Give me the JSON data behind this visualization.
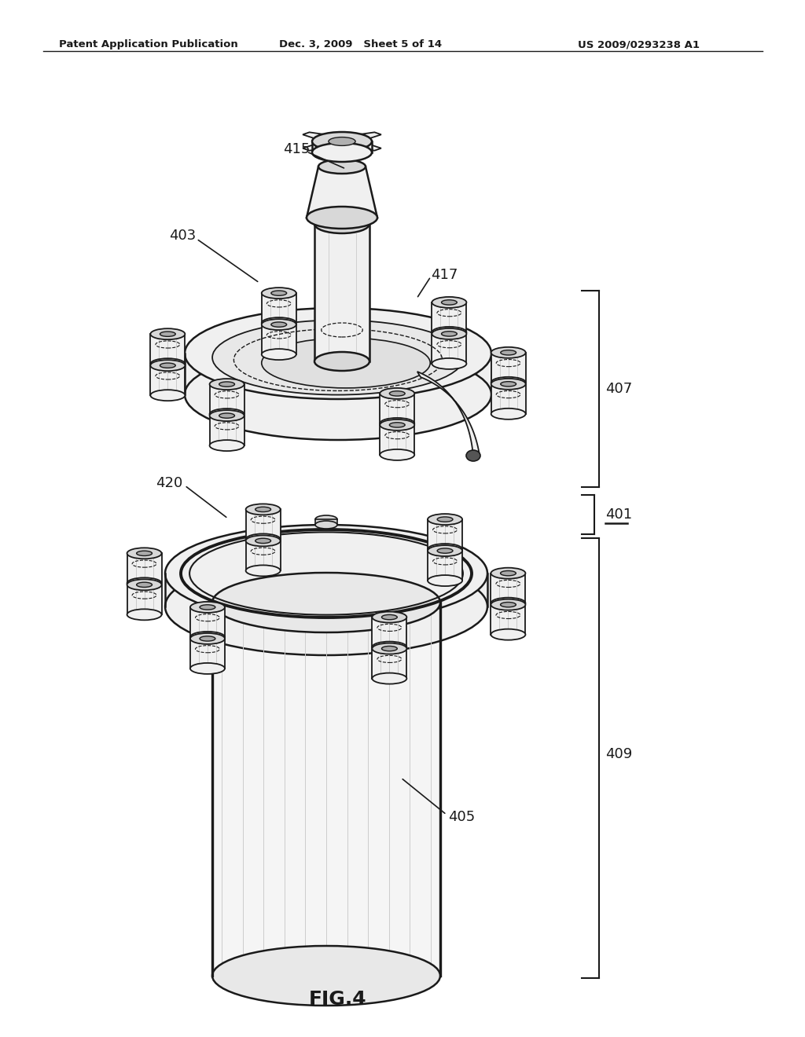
{
  "bg_color": "#ffffff",
  "header_left": "Patent Application Publication",
  "header_mid": "Dec. 3, 2009   Sheet 5 of 14",
  "header_right": "US 2009/0293238 A1",
  "figure_label": "FIG.4",
  "line_color": "#1a1a1a",
  "text_color": "#000000",
  "light_gray": "#f0f0f0",
  "mid_gray": "#d8d8d8",
  "dark_gray": "#aaaaaa",
  "lw_main": 1.8,
  "lw_thin": 1.0,
  "lw_thick": 2.5
}
